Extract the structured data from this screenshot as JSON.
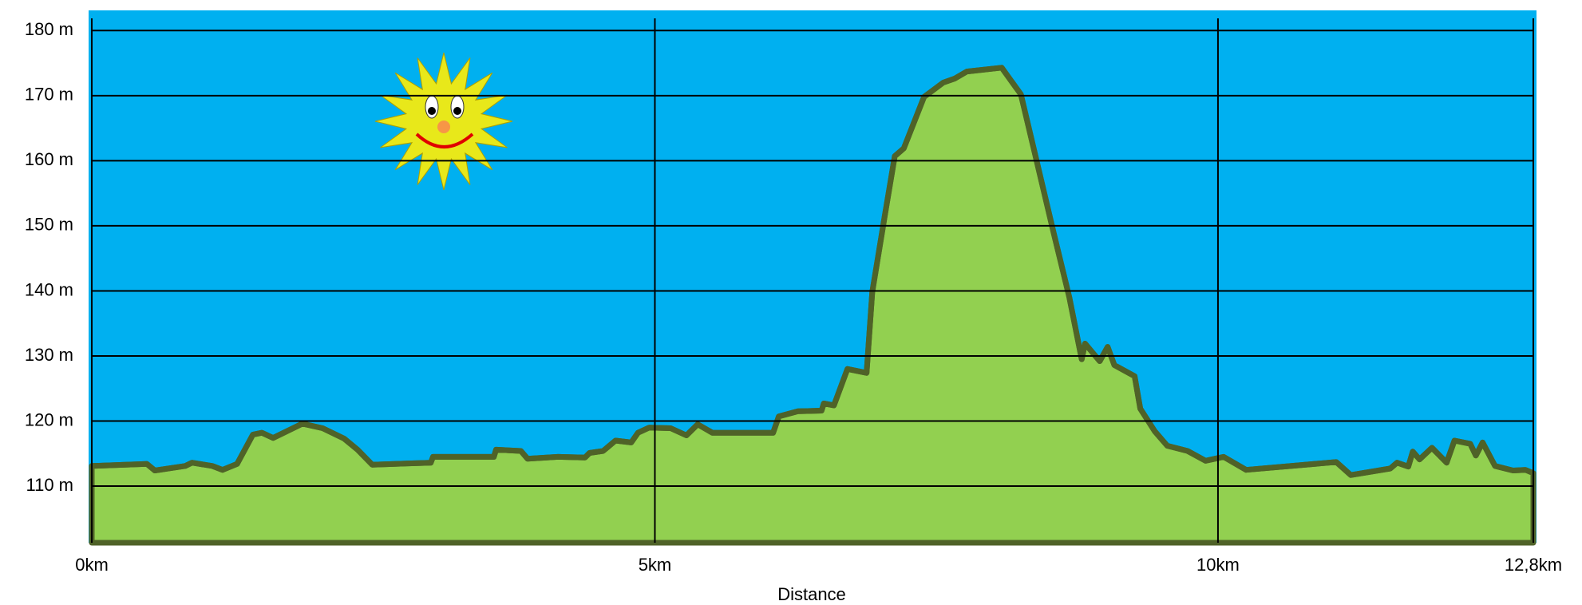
{
  "chart_data": {
    "type": "area",
    "xlabel": "Distance",
    "x": [
      0,
      0.49,
      0.56,
      0.83,
      0.89,
      1.07,
      1.16,
      1.29,
      1.43,
      1.51,
      1.61,
      1.87,
      2.05,
      2.24,
      2.36,
      2.49,
      3.01,
      3.03,
      3.57,
      3.59,
      3.81,
      3.87,
      4.14,
      4.38,
      4.42,
      4.54,
      4.65,
      4.79,
      4.85,
      4.95,
      5.14,
      5.28,
      5.38,
      5.51,
      6.05,
      6.1,
      6.27,
      6.48,
      6.5,
      6.59,
      6.71,
      6.88,
      6.93,
      7.04,
      7.13,
      7.21,
      7.39,
      7.56,
      7.66,
      7.77,
      8.08,
      8.25,
      8.37,
      8.54,
      8.68,
      8.79,
      8.82,
      8.95,
      9.02,
      9.08,
      9.26,
      9.31,
      9.44,
      9.55,
      9.73,
      9.89,
      10.05,
      10.25,
      11.05,
      11.18,
      11.53,
      11.59,
      11.69,
      11.73,
      11.79,
      11.9,
      12.03,
      12.1,
      12.24,
      12.29,
      12.35,
      12.46,
      12.62,
      12.73,
      12.8
    ],
    "values": [
      113.1,
      113.4,
      112.4,
      113.1,
      113.6,
      113.1,
      112.5,
      113.4,
      117.9,
      118.2,
      117.4,
      119.6,
      118.9,
      117.3,
      115.6,
      113.3,
      113.6,
      114.5,
      114.5,
      115.6,
      115.4,
      114.2,
      114.5,
      114.4,
      115.1,
      115.4,
      117.0,
      116.7,
      118.2,
      119.0,
      118.9,
      117.8,
      119.5,
      118.2,
      118.2,
      120.7,
      121.5,
      121.6,
      122.7,
      122.4,
      128.0,
      127.4,
      139.8,
      151.4,
      160.7,
      161.9,
      169.8,
      172.0,
      172.6,
      173.7,
      174.3,
      170.2,
      161.4,
      149.0,
      139.0,
      129.5,
      131.9,
      129.2,
      131.4,
      128.6,
      126.9,
      121.9,
      118.4,
      116.2,
      115.4,
      113.9,
      114.5,
      112.5,
      113.7,
      111.7,
      112.7,
      113.6,
      113.0,
      115.3,
      114.1,
      115.9,
      113.6,
      117.0,
      116.5,
      114.7,
      116.7,
      113.1,
      112.4,
      112.5,
      112.0
    ],
    "color": "#92d050",
    "line_color": "#4f6228",
    "background": "#00b0f0",
    "xlim": [
      0,
      12.8
    ],
    "ylim": [
      101.3,
      183.1
    ],
    "xticks": [
      {
        "value": 0,
        "label": "0km"
      },
      {
        "value": 5,
        "label": "5km"
      },
      {
        "value": 10,
        "label": "10km"
      },
      {
        "value": 12.8,
        "label": "12,8km"
      }
    ],
    "yticks": [
      {
        "value": 110,
        "label": "110 m"
      },
      {
        "value": 120,
        "label": "120 m"
      },
      {
        "value": 130,
        "label": "130 m"
      },
      {
        "value": 140,
        "label": "140 m"
      },
      {
        "value": 150,
        "label": "150 m"
      },
      {
        "value": 160,
        "label": "160 m"
      },
      {
        "value": 170,
        "label": "170 m"
      },
      {
        "value": 180,
        "label": "180 m"
      }
    ],
    "grid": true
  }
}
